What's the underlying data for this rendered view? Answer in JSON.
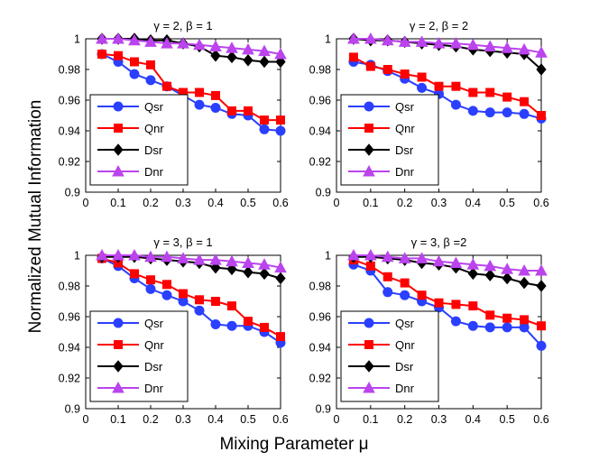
{
  "figure": {
    "ylabel": "Normalized Mutual Information",
    "xlabel": "Mixing Parameter μ"
  },
  "colors": {
    "Qsr": "#2b3fff",
    "Qnr": "#ff0000",
    "Dsr": "#000000",
    "Dnr": "#bb44ee"
  },
  "chart_data": [
    {
      "type": "line",
      "title": "γ = 2, β = 1",
      "x": [
        0.05,
        0.1,
        0.15,
        0.2,
        0.25,
        0.3,
        0.35,
        0.4,
        0.45,
        0.5,
        0.55,
        0.6
      ],
      "xlim": [
        0,
        0.6
      ],
      "ylim": [
        0.9,
        1.0
      ],
      "xticks": [
        "0",
        "0.1",
        "0.2",
        "0.3",
        "0.4",
        "0.5",
        "0.6"
      ],
      "yticks": [
        "0.9",
        "0.92",
        "0.94",
        "0.96",
        "0.98",
        "1"
      ],
      "legend": "lower-left",
      "series": [
        {
          "name": "Qsr",
          "marker": "circle",
          "values": [
            0.99,
            0.985,
            0.977,
            0.973,
            0.969,
            0.963,
            0.957,
            0.955,
            0.951,
            0.95,
            0.941,
            0.94
          ]
        },
        {
          "name": "Qnr",
          "marker": "square",
          "values": [
            0.99,
            0.989,
            0.985,
            0.983,
            0.969,
            0.965,
            0.965,
            0.963,
            0.953,
            0.953,
            0.947,
            0.947
          ]
        },
        {
          "name": "Dsr",
          "marker": "diamond",
          "values": [
            1.0,
            1.0,
            1.0,
            0.999,
            0.999,
            0.997,
            0.995,
            0.989,
            0.988,
            0.986,
            0.985,
            0.985
          ]
        },
        {
          "name": "Dnr",
          "marker": "triangle",
          "values": [
            1.0,
            1.0,
            0.999,
            0.998,
            0.997,
            0.997,
            0.996,
            0.995,
            0.994,
            0.993,
            0.992,
            0.99
          ]
        }
      ]
    },
    {
      "type": "line",
      "title": "γ = 2, β = 2",
      "x": [
        0.05,
        0.1,
        0.15,
        0.2,
        0.25,
        0.3,
        0.35,
        0.4,
        0.45,
        0.5,
        0.55,
        0.6
      ],
      "xlim": [
        0,
        0.6
      ],
      "ylim": [
        0.9,
        1.0
      ],
      "xticks": [
        "0",
        "0.1",
        "0.2",
        "0.3",
        "0.4",
        "0.5",
        "0.6"
      ],
      "yticks": [
        "0.9",
        "0.92",
        "0.94",
        "0.96",
        "0.98",
        "1"
      ],
      "legend": "lower-left",
      "series": [
        {
          "name": "Qsr",
          "marker": "circle",
          "values": [
            0.985,
            0.983,
            0.979,
            0.974,
            0.968,
            0.964,
            0.957,
            0.953,
            0.952,
            0.952,
            0.951,
            0.948
          ]
        },
        {
          "name": "Qnr",
          "marker": "square",
          "values": [
            0.988,
            0.982,
            0.98,
            0.977,
            0.975,
            0.969,
            0.969,
            0.965,
            0.965,
            0.962,
            0.959,
            0.95
          ]
        },
        {
          "name": "Dsr",
          "marker": "diamond",
          "values": [
            1.0,
            0.999,
            0.999,
            0.998,
            0.997,
            0.996,
            0.995,
            0.993,
            0.992,
            0.991,
            0.99,
            0.98
          ]
        },
        {
          "name": "Dnr",
          "marker": "triangle",
          "values": [
            1.0,
            1.0,
            0.999,
            0.998,
            0.998,
            0.997,
            0.997,
            0.996,
            0.995,
            0.994,
            0.993,
            0.991
          ]
        }
      ]
    },
    {
      "type": "line",
      "title": "γ = 3, β = 1",
      "x": [
        0.05,
        0.1,
        0.15,
        0.2,
        0.25,
        0.3,
        0.35,
        0.4,
        0.45,
        0.5,
        0.55,
        0.6
      ],
      "xlim": [
        0,
        0.6
      ],
      "ylim": [
        0.9,
        1.0
      ],
      "xticks": [
        "0",
        "0.1",
        "0.2",
        "0.3",
        "0.4",
        "0.5",
        "0.6"
      ],
      "yticks": [
        "0.9",
        "0.92",
        "0.94",
        "0.96",
        "0.98",
        "1"
      ],
      "legend": "lower-left",
      "series": [
        {
          "name": "Qsr",
          "marker": "circle",
          "values": [
            0.998,
            0.993,
            0.985,
            0.978,
            0.974,
            0.97,
            0.964,
            0.955,
            0.954,
            0.954,
            0.95,
            0.943
          ]
        },
        {
          "name": "Qnr",
          "marker": "square",
          "values": [
            0.998,
            0.995,
            0.988,
            0.984,
            0.981,
            0.975,
            0.971,
            0.97,
            0.967,
            0.957,
            0.953,
            0.947
          ]
        },
        {
          "name": "Dsr",
          "marker": "diamond",
          "values": [
            0.999,
            0.999,
            0.999,
            0.998,
            0.997,
            0.996,
            0.995,
            0.992,
            0.991,
            0.989,
            0.988,
            0.985
          ]
        },
        {
          "name": "Dnr",
          "marker": "triangle",
          "values": [
            1.0,
            1.0,
            1.0,
            0.999,
            0.999,
            0.998,
            0.997,
            0.997,
            0.996,
            0.995,
            0.994,
            0.992
          ]
        }
      ]
    },
    {
      "type": "line",
      "title": "γ = 3, β =2",
      "x": [
        0.05,
        0.1,
        0.15,
        0.2,
        0.25,
        0.3,
        0.35,
        0.4,
        0.45,
        0.5,
        0.55,
        0.6
      ],
      "xlim": [
        0,
        0.6
      ],
      "ylim": [
        0.9,
        1.0
      ],
      "xticks": [
        "0",
        "0.1",
        "0.2",
        "0.3",
        "0.4",
        "0.5",
        "0.6"
      ],
      "yticks": [
        "0.9",
        "0.92",
        "0.94",
        "0.96",
        "0.98",
        "1"
      ],
      "legend": "lower-left",
      "series": [
        {
          "name": "Qsr",
          "marker": "circle",
          "values": [
            0.994,
            0.99,
            0.976,
            0.974,
            0.97,
            0.966,
            0.957,
            0.954,
            0.953,
            0.953,
            0.953,
            0.941
          ]
        },
        {
          "name": "Qnr",
          "marker": "square",
          "values": [
            0.997,
            0.993,
            0.986,
            0.982,
            0.974,
            0.969,
            0.968,
            0.967,
            0.961,
            0.959,
            0.958,
            0.954
          ]
        },
        {
          "name": "Dsr",
          "marker": "diamond",
          "values": [
            0.999,
            0.999,
            0.998,
            0.997,
            0.995,
            0.994,
            0.992,
            0.988,
            0.987,
            0.985,
            0.982,
            0.98
          ]
        },
        {
          "name": "Dnr",
          "marker": "triangle",
          "values": [
            1.0,
            1.0,
            0.999,
            0.998,
            0.998,
            0.996,
            0.995,
            0.994,
            0.993,
            0.991,
            0.99,
            0.99
          ]
        }
      ]
    }
  ]
}
